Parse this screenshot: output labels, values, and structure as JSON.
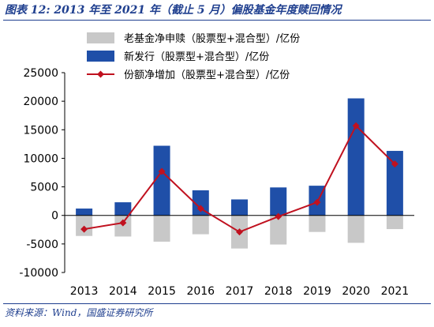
{
  "title": "图表 12: 2013 年至 2021 年（截止 5 月）偏股基金年度赎回情况",
  "source": "资料来源：Wind，国盛证券研究所",
  "colors": {
    "gray_bar": "#c8c8c8",
    "blue_bar": "#1f4fa8",
    "line": "#c0111f",
    "title": "#1f3f8f"
  },
  "chart_data": {
    "type": "bar",
    "categories": [
      "2013",
      "2014",
      "2015",
      "2016",
      "2017",
      "2018",
      "2019",
      "2020",
      "2021"
    ],
    "series": [
      {
        "name": "老基金净申赎（股票型+混合型）/亿份",
        "type": "bar",
        "values": [
          -3600,
          -3700,
          -4600,
          -3300,
          -5800,
          -5100,
          -2900,
          -4800,
          -2400
        ]
      },
      {
        "name": "新发行（股票型+混合型）/亿份",
        "type": "bar",
        "values": [
          1200,
          2300,
          12200,
          4400,
          2800,
          4900,
          5200,
          20500,
          11300
        ]
      },
      {
        "name": "份额净增加（股票型+混合型）/亿份",
        "type": "line",
        "values": [
          -2400,
          -1300,
          7700,
          1200,
          -2900,
          -200,
          2300,
          15700,
          9000
        ]
      }
    ],
    "ylim": [
      -10000,
      25000
    ],
    "yticks": [
      "-10000",
      "-5000",
      "0",
      "5000",
      "10000",
      "15000",
      "20000",
      "25000"
    ],
    "xlabel": "",
    "ylabel": "",
    "legend": "top-left",
    "grid": false
  }
}
